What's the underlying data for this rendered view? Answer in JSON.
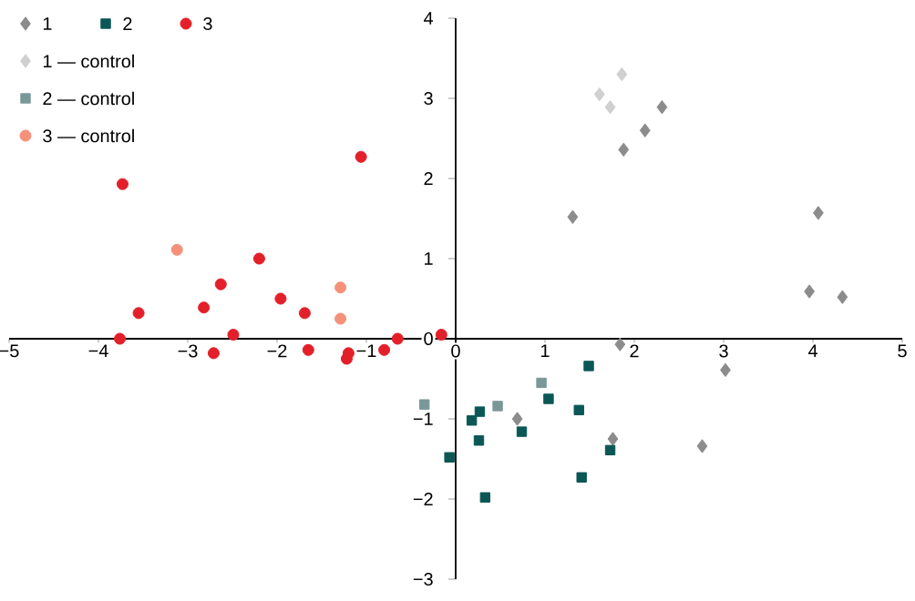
{
  "chart_data": {
    "type": "scatter",
    "xlim": [
      -5,
      5
    ],
    "ylim": [
      -3,
      4
    ],
    "xticks": [
      {
        "value": -5,
        "label": "−5"
      },
      {
        "value": -4,
        "label": "−4"
      },
      {
        "value": -3,
        "label": "−3"
      },
      {
        "value": -2,
        "label": "−2"
      },
      {
        "value": -1,
        "label": "−1"
      },
      0,
      1,
      2,
      3,
      4,
      5
    ],
    "yticks": [
      {
        "value": -3,
        "label": "−3"
      },
      {
        "value": -2,
        "label": "−2"
      },
      {
        "value": -1,
        "label": "−1"
      },
      0,
      1,
      2,
      3,
      4
    ],
    "grid": false,
    "legend": "top left",
    "series": [
      {
        "name": "1",
        "color": "#8c8c8c",
        "marker": "diamond",
        "x": [
          1.31,
          1.88,
          2.12,
          2.31,
          4.06,
          3.96,
          4.33,
          1.84,
          3.02,
          0.69,
          1.76,
          2.76
        ],
        "values": [
          1.52,
          2.36,
          2.6,
          2.89,
          1.57,
          0.59,
          0.52,
          -0.07,
          -0.39,
          -1.0,
          -1.25,
          -1.34
        ]
      },
      {
        "name": "2",
        "color": "#0b5756",
        "marker": "square",
        "x": [
          1.49,
          1.04,
          1.38,
          0.27,
          0.18,
          0.26,
          0.74,
          -0.07,
          0.33,
          1.41,
          1.73
        ],
        "values": [
          -0.34,
          -0.75,
          -0.89,
          -0.91,
          -1.02,
          -1.27,
          -1.16,
          -1.48,
          -1.98,
          -1.73,
          -1.39
        ]
      },
      {
        "name": "3",
        "color": "#e3202a",
        "marker": "circle",
        "x": [
          -3.73,
          -1.06,
          -2.2,
          -2.82,
          -2.63,
          -3.55,
          -1.96,
          -1.69,
          -3.76,
          -2.49,
          -2.71,
          -1.65,
          -1.2,
          -1.22,
          -0.8,
          -0.65,
          -0.16
        ],
        "values": [
          1.93,
          2.27,
          1.0,
          0.39,
          0.68,
          0.32,
          0.5,
          0.32,
          0,
          0.05,
          -0.18,
          -0.14,
          -0.18,
          -0.25,
          -0.14,
          0,
          0.05
        ]
      },
      {
        "name": "1 — control",
        "color": "#d0d0d0",
        "marker": "diamond",
        "x": [
          1.86,
          1.61,
          1.73
        ],
        "values": [
          3.3,
          3.05,
          2.89
        ]
      },
      {
        "name": "2 — control",
        "color": "#7b9899",
        "marker": "square",
        "x": [
          0.96,
          0.47,
          -0.35
        ],
        "values": [
          -0.55,
          -0.84,
          -0.82
        ]
      },
      {
        "name": "3 — control",
        "color": "#f5907a",
        "marker": "circle",
        "x": [
          -3.12,
          -1.29,
          -1.29
        ],
        "values": [
          1.11,
          0.64,
          0.25
        ]
      }
    ]
  }
}
